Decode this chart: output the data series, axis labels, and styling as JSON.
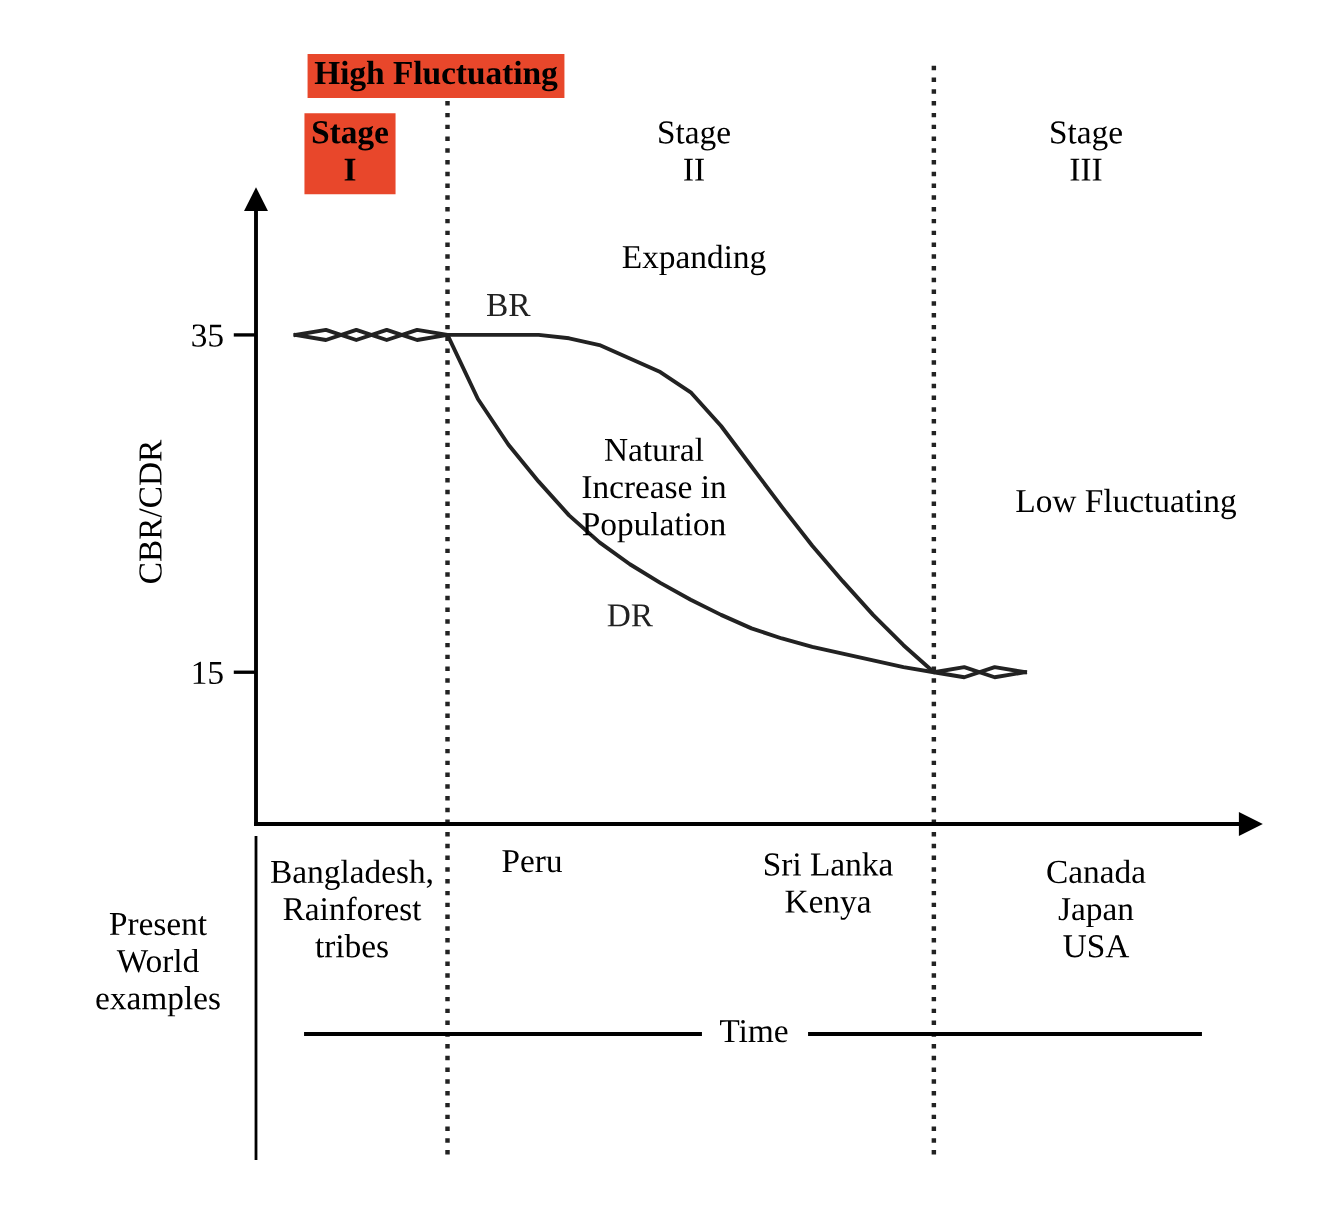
{
  "chart_data": {
    "type": "line",
    "ylabel": "CBR/CDR",
    "categories": [
      null,
      null,
      null,
      null,
      null,
      null,
      null,
      null,
      null,
      null,
      null,
      null,
      null,
      null,
      null,
      null,
      null,
      null,
      null,
      null,
      null,
      null,
      null,
      null,
      null
    ],
    "ylim": [
      6,
      43
    ],
    "yticks": [
      15,
      35
    ],
    "tick_labels": "y",
    "grid": false,
    "marker": "none",
    "line_style": "solid",
    "series": [
      {
        "name": "BR",
        "color": "#222222",
        "values": [
          35,
          35.3,
          34.7,
          35.3,
          34.7,
          35,
          35,
          35,
          35,
          34.8,
          34.4,
          33.6,
          32.8,
          31.6,
          29.6,
          27.2,
          24.8,
          22.5,
          20.4,
          18.4,
          16.6,
          15,
          15.3,
          14.7,
          15
        ]
      },
      {
        "name": "DR",
        "color": "#222222",
        "values": [
          35,
          34.7,
          35.3,
          34.7,
          35.3,
          35,
          31.2,
          28.5,
          26.3,
          24.3,
          22.7,
          21.4,
          20.3,
          19.3,
          18.4,
          17.6,
          17,
          16.5,
          16.1,
          15.7,
          15.3,
          15,
          14.7,
          15.3,
          15
        ]
      }
    ],
    "annotations": [
      "High Fluctuating",
      "Stage\nI",
      "Stage\nII",
      "Stage\nIII",
      "Expanding",
      "Natural\nIncrease in\nPopulation",
      "Low Fluctuating",
      "Bangladesh,\nRainforest\ntribes",
      "Peru",
      "Sri Lanka\nKenya",
      "Canada\nJapan\nUSA",
      "Present\nWorld\nexamples",
      "Time"
    ]
  }
}
